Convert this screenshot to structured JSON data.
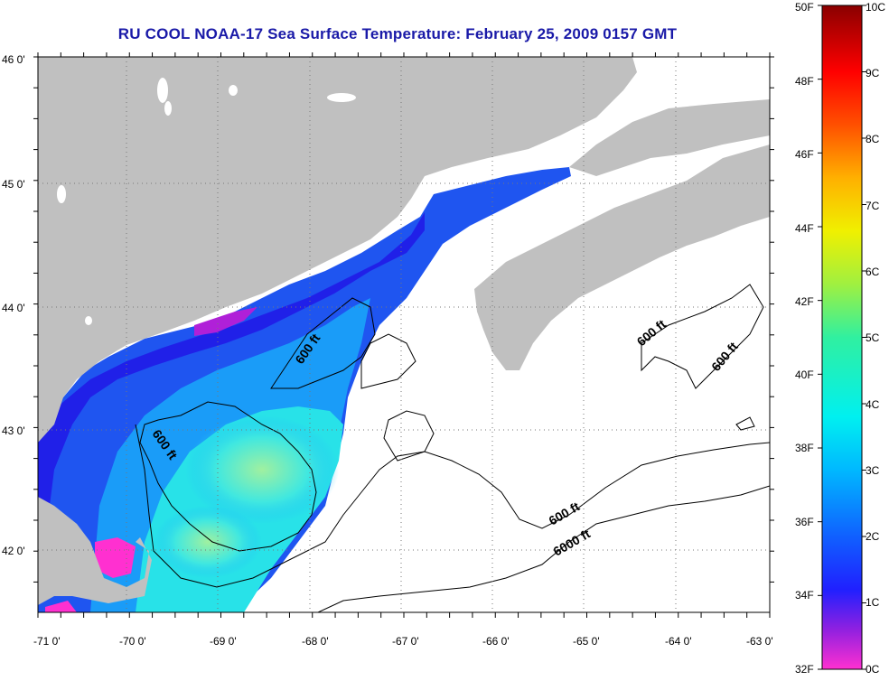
{
  "title": "RU COOL  NOAA-17  Sea Surface Temperature:  February 25, 2009 0157 GMT",
  "map": {
    "lon_ticks": [
      "-71 0'",
      "-70 0'",
      "-69 0'",
      "-68 0'",
      "-67 0'",
      "-66 0'",
      "-65 0'",
      "-64 0'",
      "-63 0'"
    ],
    "lat_ticks": [
      "46 0'",
      "45 0'",
      "44 0'",
      "43 0'",
      "42 0'"
    ],
    "contour_labels": [
      "600 ft",
      "600 ft",
      "600 ft",
      "600 ft",
      "6000 ft",
      "600 ft"
    ],
    "colors": {
      "land": "#c0c0c0",
      "cloud": "#ffffff"
    }
  },
  "colorbar": {
    "fahrenheit_labels": [
      "50F",
      "48F",
      "46F",
      "44F",
      "42F",
      "40F",
      "38F",
      "36F",
      "34F",
      "32F"
    ],
    "celsius_labels": [
      "10C",
      "9C",
      "8C",
      "7C",
      "6C",
      "5C",
      "4C",
      "3C",
      "2C",
      "1C",
      "0C"
    ],
    "range_f": [
      32,
      50
    ],
    "range_c": [
      0,
      10
    ]
  }
}
